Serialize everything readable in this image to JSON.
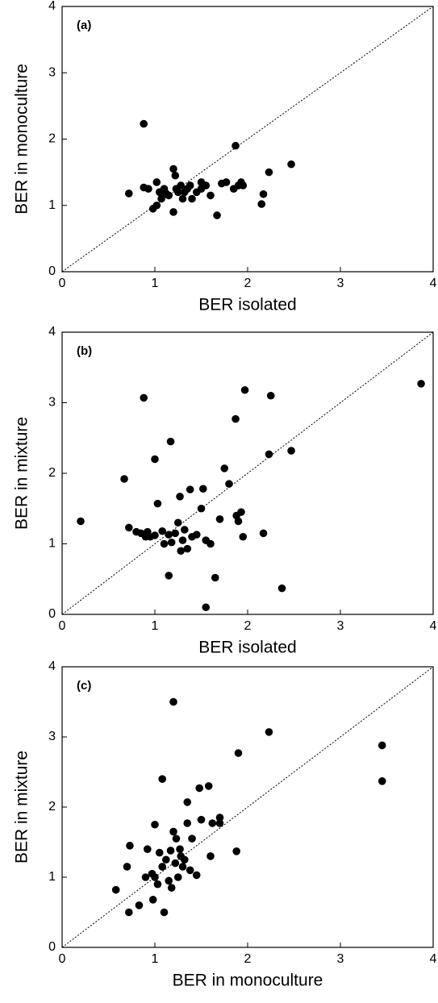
{
  "chart_data": [
    {
      "type": "scatter",
      "annotation": "(a)",
      "xlabel": "BER isolated",
      "ylabel": "BER in monoculture",
      "color": "#000000",
      "diagonal": true,
      "xlim": [
        0,
        4
      ],
      "ylim": [
        0,
        4
      ],
      "xticks": [
        0,
        1,
        2,
        3,
        4
      ],
      "yticks": [
        0,
        1,
        2,
        3,
        4
      ],
      "x": [
        0.72,
        0.88,
        0.88,
        0.93,
        0.98,
        1.02,
        1.02,
        1.05,
        1.07,
        1.1,
        1.12,
        1.15,
        1.2,
        1.2,
        1.22,
        1.23,
        1.25,
        1.28,
        1.3,
        1.32,
        1.35,
        1.38,
        1.4,
        1.45,
        1.5,
        1.5,
        1.55,
        1.6,
        1.67,
        1.72,
        1.77,
        1.85,
        1.87,
        1.9,
        1.93,
        1.95,
        2.15,
        2.17,
        2.23,
        2.47
      ],
      "values": [
        1.18,
        2.23,
        1.27,
        1.25,
        0.95,
        1.0,
        1.35,
        1.2,
        1.1,
        1.25,
        1.18,
        1.15,
        1.55,
        0.9,
        1.45,
        1.25,
        1.2,
        1.3,
        1.1,
        1.2,
        1.25,
        1.3,
        1.1,
        1.2,
        1.35,
        1.25,
        1.3,
        1.15,
        0.85,
        1.33,
        1.35,
        1.25,
        1.9,
        1.3,
        1.35,
        1.3,
        1.02,
        1.17,
        1.5,
        1.62
      ]
    },
    {
      "type": "scatter",
      "annotation": "(b)",
      "xlabel": "BER isolated",
      "ylabel": "BER in mixture",
      "color": "#000000",
      "diagonal": true,
      "xlim": [
        0,
        4
      ],
      "ylim": [
        0,
        4
      ],
      "xticks": [
        0,
        1,
        2,
        3,
        4
      ],
      "yticks": [
        0,
        1,
        2,
        3,
        4
      ],
      "x": [
        0.2,
        0.67,
        0.72,
        0.8,
        0.85,
        0.88,
        0.9,
        0.92,
        0.95,
        1.0,
        1.0,
        1.03,
        1.08,
        1.1,
        1.15,
        1.15,
        1.17,
        1.18,
        1.22,
        1.25,
        1.27,
        1.28,
        1.3,
        1.32,
        1.35,
        1.38,
        1.4,
        1.45,
        1.5,
        1.52,
        1.55,
        1.55,
        1.6,
        1.65,
        1.7,
        1.75,
        1.8,
        1.87,
        1.88,
        1.9,
        1.93,
        1.95,
        1.97,
        2.17,
        2.23,
        2.25,
        2.37,
        2.47,
        3.87
      ],
      "values": [
        1.32,
        1.92,
        1.23,
        1.17,
        1.15,
        3.07,
        1.1,
        1.17,
        1.1,
        2.2,
        1.12,
        1.57,
        1.18,
        1.0,
        1.13,
        0.55,
        2.45,
        1.02,
        1.15,
        1.3,
        1.67,
        0.9,
        1.05,
        1.2,
        0.93,
        1.77,
        1.1,
        1.13,
        1.5,
        1.78,
        1.05,
        0.1,
        1.0,
        0.52,
        1.35,
        2.07,
        1.85,
        2.77,
        1.4,
        1.32,
        1.45,
        1.1,
        3.18,
        1.15,
        2.27,
        3.1,
        0.37,
        2.32,
        3.27
      ]
    },
    {
      "type": "scatter",
      "annotation": "(c)",
      "xlabel": "BER in monoculture",
      "ylabel": "BER in mixture",
      "color": "#000000",
      "diagonal": true,
      "xlim": [
        0,
        4
      ],
      "ylim": [
        0,
        4
      ],
      "xticks": [
        0,
        1,
        2,
        3,
        4
      ],
      "yticks": [
        0,
        1,
        2,
        3,
        4
      ],
      "x": [
        0.58,
        0.7,
        0.72,
        0.73,
        0.83,
        0.9,
        0.92,
        0.97,
        0.98,
        1.0,
        1.0,
        1.03,
        1.05,
        1.08,
        1.08,
        1.1,
        1.12,
        1.15,
        1.17,
        1.18,
        1.2,
        1.2,
        1.22,
        1.23,
        1.25,
        1.27,
        1.28,
        1.3,
        1.32,
        1.35,
        1.35,
        1.38,
        1.4,
        1.45,
        1.48,
        1.5,
        1.58,
        1.6,
        1.62,
        1.7,
        1.7,
        1.88,
        1.9,
        2.23,
        3.45,
        3.45
      ],
      "values": [
        0.82,
        1.15,
        0.5,
        1.45,
        0.6,
        1.0,
        1.4,
        1.05,
        0.68,
        1.75,
        1.0,
        0.9,
        1.35,
        2.4,
        1.15,
        0.5,
        1.25,
        0.95,
        1.38,
        0.85,
        3.5,
        1.65,
        1.2,
        1.55,
        1.0,
        1.4,
        1.3,
        1.15,
        1.25,
        2.07,
        1.77,
        1.1,
        1.55,
        1.03,
        2.27,
        1.82,
        2.3,
        1.3,
        1.77,
        1.85,
        1.77,
        1.37,
        2.77,
        3.07,
        2.88,
        2.37
      ]
    }
  ]
}
